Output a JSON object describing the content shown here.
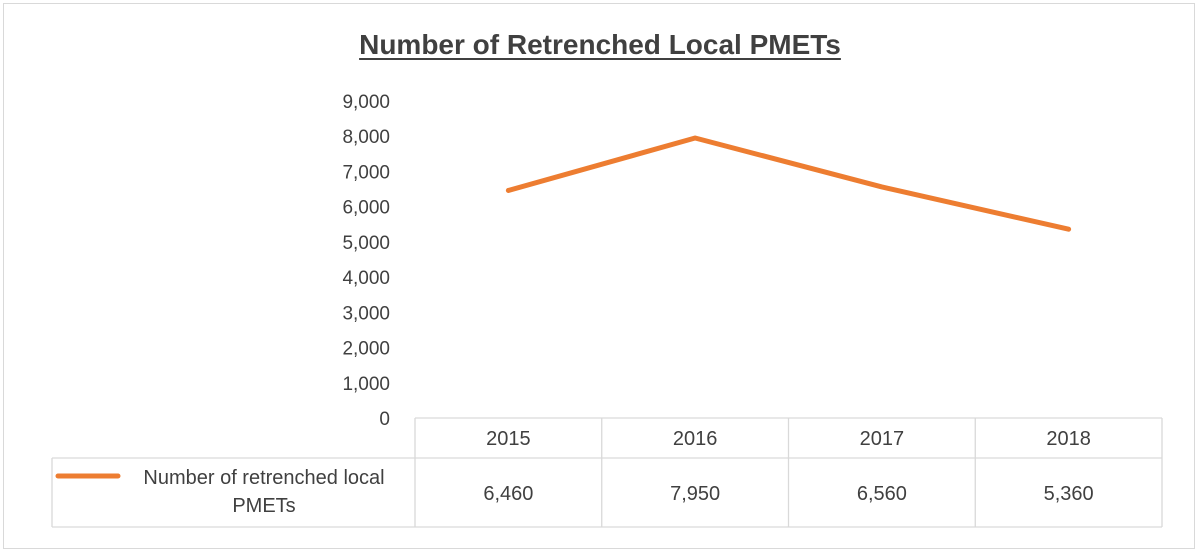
{
  "chart_data": {
    "type": "line",
    "title": "Number of Retrenched Local PMETs",
    "categories": [
      "2015",
      "2016",
      "2017",
      "2018"
    ],
    "series": [
      {
        "name": "Number of retrenched local PMETs",
        "values": [
          6460,
          7950,
          6560,
          5360
        ],
        "value_labels": [
          "6,460",
          "7,950",
          "6,560",
          "5,360"
        ],
        "color": "#ed7d31"
      }
    ],
    "yticks": [
      "0",
      "1,000",
      "2,000",
      "3,000",
      "4,000",
      "5,000",
      "6,000",
      "7,000",
      "8,000",
      "9,000"
    ],
    "ylim": [
      0,
      9000
    ],
    "legend": "data-table",
    "grid": false
  }
}
